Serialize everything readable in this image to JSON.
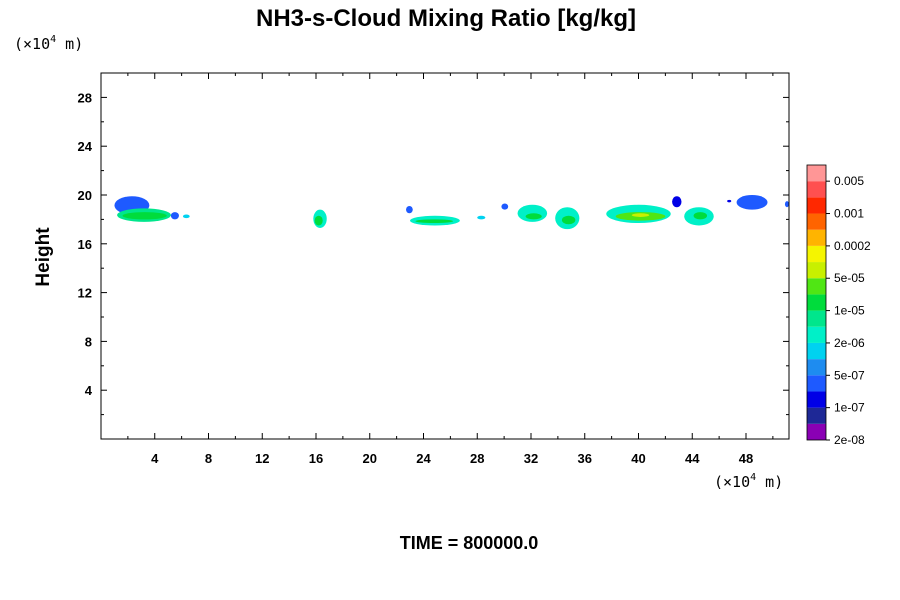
{
  "chart_data": {
    "type": "heatmap",
    "title": "NH3-s-Cloud Mixing Ratio [kg/kg]",
    "ylabel": "Height",
    "y_unit": {
      "prefix": "(×10",
      "exp": "4",
      "suffix": " m)"
    },
    "x_unit": {
      "prefix": "(×10",
      "exp": "4",
      "suffix": " m)"
    },
    "xlim": [
      0,
      51.2
    ],
    "ylim": [
      0,
      30
    ],
    "x_ticks": [
      4,
      8,
      12,
      16,
      20,
      24,
      28,
      32,
      36,
      40,
      44,
      48
    ],
    "y_ticks": [
      4,
      8,
      12,
      16,
      20,
      24,
      28
    ],
    "x_tick_labels": [
      "4",
      "8",
      "12",
      "16",
      "20",
      "24",
      "28",
      "32",
      "36",
      "40",
      "44",
      "48"
    ],
    "y_tick_labels": [
      "4",
      "8",
      "12",
      "16",
      "20",
      "24",
      "28"
    ],
    "colorbar": {
      "labels": [
        "0.005",
        "0.001",
        "0.0002",
        "5e-05",
        "1e-05",
        "2e-06",
        "5e-07",
        "1e-07",
        "2e-08"
      ],
      "colors": [
        "#8a00b4",
        "#1e2896",
        "#0000e6",
        "#1e5aff",
        "#1e8cf0",
        "#00d2f0",
        "#00f0c8",
        "#00e68c",
        "#00dc3c",
        "#50e614",
        "#c8f000",
        "#f5f500",
        "#ffb400",
        "#ff6400",
        "#ff2800",
        "#ff5050",
        "#ff9696"
      ]
    },
    "cloud_patches": [
      {
        "x": [
          1.0,
          3.6
        ],
        "y": [
          18.4,
          19.9
        ],
        "level": 3
      },
      {
        "x": [
          1.2,
          5.2
        ],
        "y": [
          17.8,
          18.9
        ],
        "level": 7
      },
      {
        "x": [
          1.6,
          4.9
        ],
        "y": [
          18.0,
          18.6
        ],
        "level": 8
      },
      {
        "x": [
          5.2,
          5.8
        ],
        "y": [
          18.0,
          18.6
        ],
        "level": 3
      },
      {
        "x": [
          6.1,
          6.6
        ],
        "y": [
          18.1,
          18.4
        ],
        "level": 5
      },
      {
        "x": [
          15.8,
          16.8
        ],
        "y": [
          17.3,
          18.8
        ],
        "level": 6
      },
      {
        "x": [
          15.9,
          16.5
        ],
        "y": [
          17.5,
          18.3
        ],
        "level": 8
      },
      {
        "x": [
          22.7,
          23.2
        ],
        "y": [
          18.5,
          19.1
        ],
        "level": 3
      },
      {
        "x": [
          23.0,
          26.7
        ],
        "y": [
          17.5,
          18.3
        ],
        "level": 6
      },
      {
        "x": [
          23.4,
          26.2
        ],
        "y": [
          17.7,
          18.0
        ],
        "level": 8
      },
      {
        "x": [
          28.0,
          28.6
        ],
        "y": [
          18.0,
          18.3
        ],
        "level": 5
      },
      {
        "x": [
          29.8,
          30.3
        ],
        "y": [
          18.8,
          19.3
        ],
        "level": 3
      },
      {
        "x": [
          31.0,
          33.2
        ],
        "y": [
          17.8,
          19.2
        ],
        "level": 6
      },
      {
        "x": [
          31.6,
          32.8
        ],
        "y": [
          18.0,
          18.5
        ],
        "level": 8
      },
      {
        "x": [
          33.8,
          35.6
        ],
        "y": [
          17.2,
          19.0
        ],
        "level": 6
      },
      {
        "x": [
          34.3,
          35.3
        ],
        "y": [
          17.6,
          18.3
        ],
        "level": 8
      },
      {
        "x": [
          37.6,
          42.4
        ],
        "y": [
          17.7,
          19.2
        ],
        "level": 6
      },
      {
        "x": [
          38.3,
          42.0
        ],
        "y": [
          17.9,
          18.6
        ],
        "level": 9
      },
      {
        "x": [
          39.5,
          40.8
        ],
        "y": [
          18.2,
          18.5
        ],
        "level": 10
      },
      {
        "x": [
          42.5,
          43.2
        ],
        "y": [
          19.0,
          19.9
        ],
        "level": 2
      },
      {
        "x": [
          43.4,
          45.6
        ],
        "y": [
          17.5,
          19.0
        ],
        "level": 6
      },
      {
        "x": [
          44.1,
          45.1
        ],
        "y": [
          18.0,
          18.6
        ],
        "level": 8
      },
      {
        "x": [
          46.6,
          46.9
        ],
        "y": [
          19.4,
          19.6
        ],
        "level": 2
      },
      {
        "x": [
          47.3,
          49.6
        ],
        "y": [
          18.8,
          20.0
        ],
        "level": 3
      },
      {
        "x": [
          50.9,
          51.2
        ],
        "y": [
          19.0,
          19.5
        ],
        "level": 3
      }
    ]
  },
  "footer": {
    "time_label": "TIME = 800000.0"
  }
}
